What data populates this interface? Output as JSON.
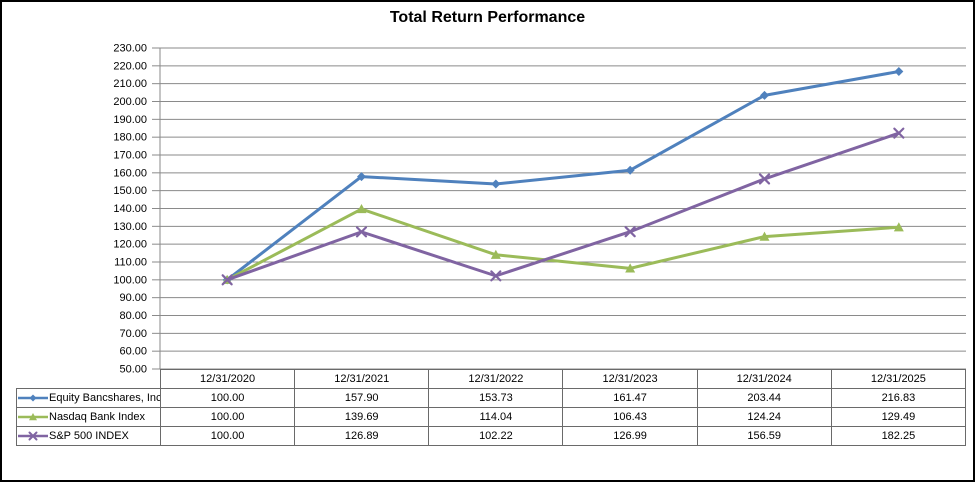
{
  "title": "Total Return Performance",
  "chart_data": {
    "type": "line",
    "title": "Total Return Performance",
    "xlabel": "",
    "ylabel": "",
    "x_categories": [
      "12/31/2020",
      "12/31/2021",
      "12/31/2022",
      "12/31/2023",
      "12/31/2024",
      "12/31/2025"
    ],
    "series": [
      {
        "name": "Equity Bancshares, Inc.",
        "marker": "diamond",
        "color": "#4F81BD",
        "values": [
          100.0,
          157.9,
          153.73,
          161.47,
          203.44,
          216.83
        ]
      },
      {
        "name": "Nasdaq Bank Index",
        "marker": "triangle",
        "color": "#9BBB59",
        "values": [
          100.0,
          139.69,
          114.04,
          106.43,
          124.24,
          129.49
        ]
      },
      {
        "name": "S&P 500 INDEX",
        "marker": "x",
        "color": "#8064A2",
        "values": [
          100.0,
          126.89,
          102.22,
          126.99,
          156.59,
          182.25
        ]
      }
    ],
    "ylim": [
      50,
      230
    ],
    "ytick_step": 10,
    "ytick_decimals": 2,
    "value_decimals": 2,
    "grid": true,
    "legend_position": "table-left"
  },
  "style": {
    "gridline_color": "#8a8a8a",
    "axis_color": "#8a8a8a",
    "table_border_color": "#6a6a6a",
    "text_color": "#000000",
    "background": "#ffffff"
  }
}
